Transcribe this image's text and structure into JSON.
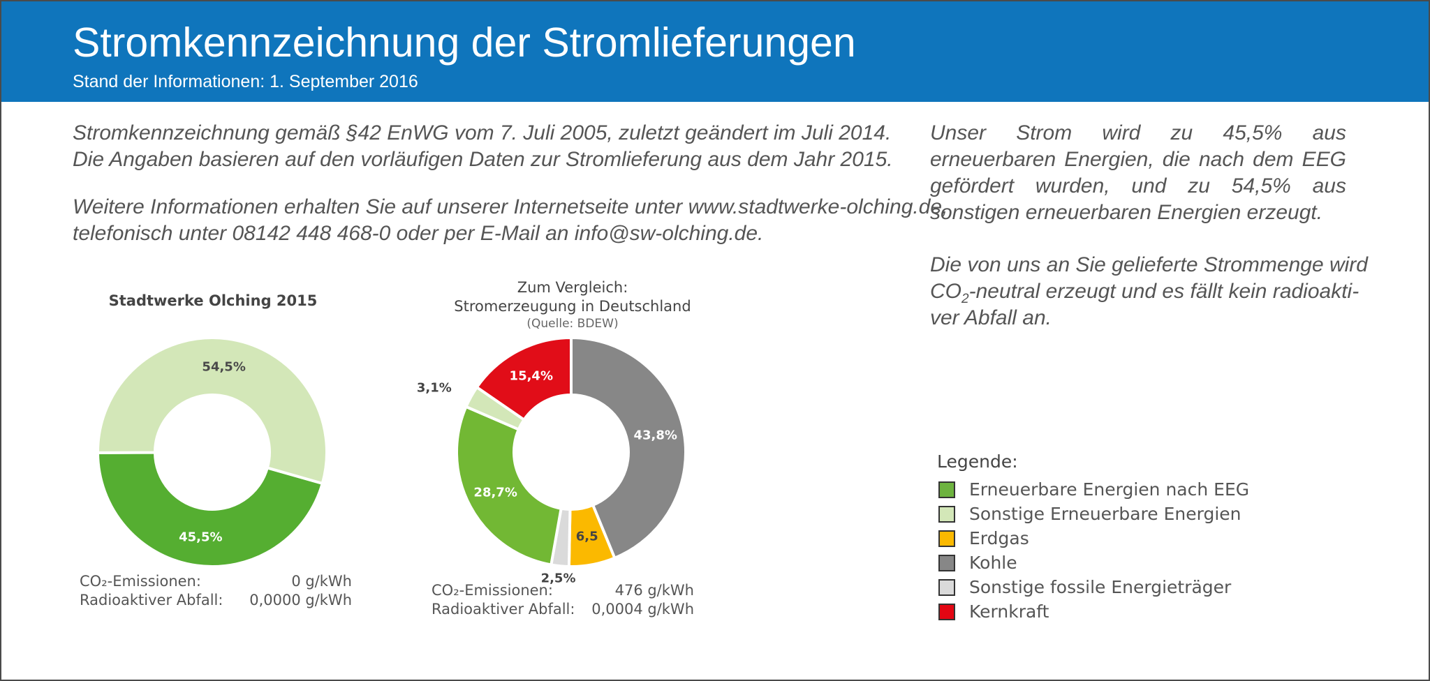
{
  "header": {
    "title": "Stromkennzeichnung der Stromlieferungen",
    "subtitle": "Stand der Informationen: 1. September 2016"
  },
  "intro": {
    "line1": "Stromkennzeichnung gemäß §42 EnWG vom 7. Juli 2005, zuletzt geändert im Juli 2014.",
    "line2": "Die Angaben basieren auf den vorläufigen Daten zur Stromlieferung aus dem Jahr 2015.",
    "line3": "Weitere Informationen erhalten Sie auf unserer Internetseite unter www.stadtwerke-olching.de,",
    "line4": "telefonisch unter 08142 448 468-0 oder per E-Mail an info@sw-olching.de."
  },
  "sidebar": {
    "para1": "Unser Strom wird zu 45,5% aus erneuerbaren Energien, die nach dem EEG gefördert wurden, und zu 54,5% aus sonstigen erneuerbaren Energien erzeugt.",
    "para2_line1": "Die von uns an Sie gelieferte Strommenge wird",
    "para2_co": "CO",
    "para2_sub": "2",
    "para2_line2_rest": "-neutral erzeugt und es fällt kein radioakti-",
    "para2_line3": "ver Abfall an."
  },
  "legend": {
    "title": "Legende:",
    "items": [
      {
        "label": "Erneuerbare Energien nach EEG",
        "color": "#6db33f"
      },
      {
        "label": "Sonstige Erneuerbare Energien",
        "color": "#d3e7b8"
      },
      {
        "label": "Erdgas",
        "color": "#fbb900"
      },
      {
        "label": "Kohle",
        "color": "#878787"
      },
      {
        "label": "Sonstige fossile Energieträger",
        "color": "#dadada"
      },
      {
        "label": "Kernkraft",
        "color": "#e30613"
      }
    ]
  },
  "chart_data": [
    {
      "type": "pie",
      "title": "Stadtwerke Olching 2015",
      "slices": [
        {
          "category": "Erneuerbare Energien nach EEG",
          "value": 45.5,
          "label": "45,5%",
          "color": "#55ae31"
        },
        {
          "category": "Sonstige Erneuerbare Energien",
          "value": 54.5,
          "label": "54,5%",
          "color": "#d3e7b8"
        }
      ],
      "stats": [
        {
          "label": "CO₂-Emissionen:",
          "value": "0 g/kWh"
        },
        {
          "label": "Radioaktiver Abfall:",
          "value": "0,0000 g/kWh"
        }
      ]
    },
    {
      "type": "pie",
      "title_line1": "Zum Vergleich:",
      "title_line2": "Stromerzeugung in Deutschland",
      "source": "(Quelle: BDEW)",
      "slices": [
        {
          "category": "Kohle",
          "value": 43.8,
          "label": "43,8%",
          "color": "#878787"
        },
        {
          "category": "Erdgas",
          "value": 6.5,
          "label": "6,5",
          "color": "#fbb900"
        },
        {
          "category": "Sonstige fossile Energieträger",
          "value": 2.5,
          "label": "2,5%",
          "color": "#dadada"
        },
        {
          "category": "Erneuerbare Energien nach EEG",
          "value": 28.7,
          "label": "28,7%",
          "color": "#72b834"
        },
        {
          "category": "Sonstige Erneuerbare Energien",
          "value": 3.1,
          "label": "3,1%",
          "color": "#d3e7b8"
        },
        {
          "category": "Kernkraft",
          "value": 15.4,
          "label": "15,4%",
          "color": "#e10d18"
        }
      ],
      "stats": [
        {
          "label": "CO₂-Emissionen:",
          "value": "476 g/kWh"
        },
        {
          "label": "Radioaktiver Abfall:",
          "value": "0,0004 g/kWh"
        }
      ]
    }
  ]
}
